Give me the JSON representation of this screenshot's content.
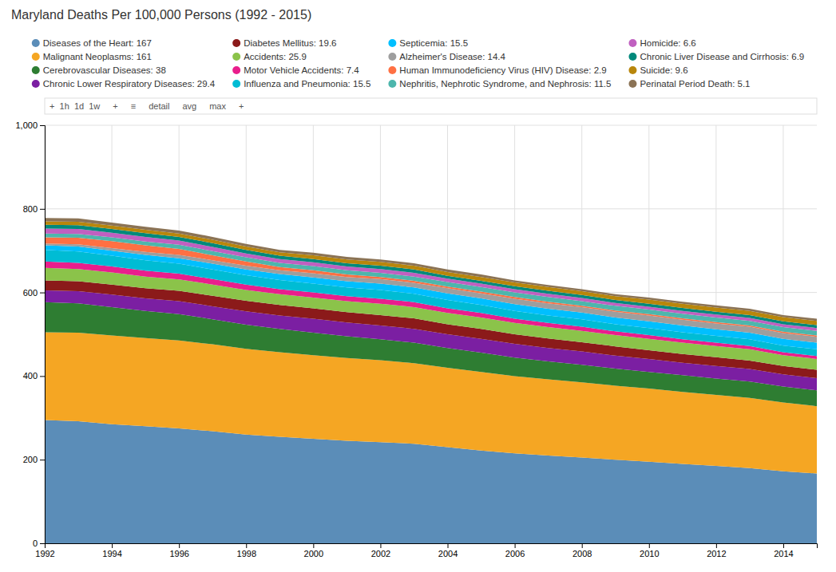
{
  "chart_data": {
    "type": "area",
    "stacked": true,
    "title": "Maryland Deaths Per 100,000 Persons (1992 - 2015)",
    "annotations": [
      "+  1h  1d  1w",
      "+",
      "≡",
      "detail",
      "avg",
      "max",
      "+"
    ],
    "x": [
      1992,
      1993,
      1994,
      1995,
      1996,
      1997,
      1998,
      1999,
      2000,
      2001,
      2002,
      2003,
      2004,
      2005,
      2006,
      2007,
      2008,
      2009,
      2010,
      2011,
      2012,
      2013,
      2014,
      2015
    ],
    "series": [
      {
        "name": "Diseases of the Heart: 167",
        "color": "#5b8db8",
        "values": [
          295,
          292,
          285,
          280,
          275,
          268,
          260,
          255,
          250,
          245,
          242,
          238,
          230,
          222,
          215,
          210,
          205,
          200,
          195,
          190,
          185,
          180,
          172,
          167
        ]
      },
      {
        "name": "Malignant Neoplasms: 161",
        "color": "#f5a623",
        "values": [
          210,
          212,
          212,
          211,
          210,
          208,
          205,
          202,
          200,
          198,
          196,
          193,
          190,
          188,
          185,
          182,
          180,
          177,
          175,
          172,
          170,
          168,
          165,
          161
        ]
      },
      {
        "name": "Cerebrovascular Diseases: 38",
        "color": "#2e7d32",
        "values": [
          72,
          70,
          68,
          65,
          63,
          60,
          58,
          56,
          54,
          52,
          50,
          49,
          47,
          46,
          44,
          43,
          42,
          41,
          40,
          40,
          39,
          39,
          38,
          38
        ]
      },
      {
        "name": "Chronic Lower Respiratory Diseases: 29.4",
        "color": "#7b1fa2",
        "values": [
          28,
          29,
          30,
          30,
          31,
          31,
          32,
          32,
          33,
          33,
          33,
          33,
          33,
          33,
          33,
          32,
          32,
          31,
          31,
          30,
          30,
          30,
          29,
          29
        ]
      },
      {
        "name": "Diabetes Mellitus: 19.6",
        "color": "#8b1a1a",
        "values": [
          24,
          24,
          24,
          24,
          25,
          25,
          25,
          25,
          25,
          25,
          25,
          25,
          24,
          24,
          23,
          23,
          22,
          22,
          21,
          21,
          21,
          20,
          20,
          20
        ]
      },
      {
        "name": "Accidents: 25.9",
        "color": "#8bc34a",
        "values": [
          30,
          29,
          29,
          28,
          27,
          27,
          26,
          26,
          26,
          26,
          27,
          27,
          27,
          27,
          27,
          27,
          27,
          27,
          27,
          27,
          27,
          27,
          26,
          26
        ]
      },
      {
        "name": "Motor Vehicle Accidents: 7.4",
        "color": "#e91e8c",
        "values": [
          15,
          15,
          14,
          14,
          14,
          13,
          13,
          12,
          12,
          12,
          12,
          12,
          11,
          11,
          10,
          10,
          10,
          9,
          9,
          8,
          8,
          8,
          7,
          7
        ]
      },
      {
        "name": "Influenza and Pneumonia: 15.5",
        "color": "#00bcd4",
        "values": [
          28,
          27,
          26,
          25,
          24,
          23,
          22,
          22,
          21,
          21,
          21,
          20,
          20,
          19,
          19,
          18,
          18,
          17,
          17,
          17,
          16,
          16,
          16,
          16
        ]
      },
      {
        "name": "Septicemia: 15.5",
        "color": "#00bfff",
        "values": [
          11,
          12,
          12,
          13,
          13,
          14,
          14,
          14,
          15,
          15,
          15,
          15,
          16,
          16,
          16,
          16,
          16,
          16,
          16,
          16,
          16,
          16,
          16,
          16
        ]
      },
      {
        "name": "Alzheimer's Disease: 14.4",
        "color": "#9e9e9e",
        "values": [
          4,
          5,
          6,
          7,
          8,
          8,
          9,
          9,
          10,
          10,
          11,
          11,
          12,
          12,
          13,
          13,
          13,
          14,
          14,
          14,
          14,
          14,
          14,
          14
        ]
      },
      {
        "name": "Human Immunodeficiency Virus (HIV) Disease: 2.9",
        "color": "#ff7043",
        "values": [
          15,
          16,
          17,
          16,
          14,
          12,
          10,
          8,
          7,
          6,
          5,
          5,
          4,
          4,
          4,
          4,
          3,
          3,
          3,
          3,
          3,
          3,
          3,
          3
        ]
      },
      {
        "name": "Nephritis, Nephrotic Syndrome, and Nephrosis: 11.5",
        "color": "#4db6ac",
        "values": [
          9,
          9,
          9,
          9,
          10,
          10,
          10,
          10,
          10,
          10,
          10,
          10,
          11,
          11,
          11,
          11,
          11,
          11,
          11,
          11,
          11,
          11,
          11,
          11
        ]
      },
      {
        "name": "Homicide: 6.6",
        "color": "#c060c0",
        "values": [
          12,
          12,
          11,
          11,
          10,
          10,
          9,
          9,
          9,
          9,
          9,
          9,
          8,
          8,
          8,
          8,
          8,
          7,
          7,
          7,
          7,
          7,
          7,
          7
        ]
      },
      {
        "name": "Chronic Liver Disease and Cirrhosis: 6.9",
        "color": "#00897b",
        "values": [
          9,
          9,
          9,
          9,
          9,
          9,
          9,
          8,
          8,
          8,
          8,
          8,
          7,
          7,
          7,
          7,
          7,
          7,
          7,
          7,
          7,
          7,
          7,
          7
        ]
      },
      {
        "name": "Suicide: 9.6",
        "color": "#b8860b",
        "values": [
          8,
          8,
          8,
          8,
          8,
          8,
          8,
          8,
          9,
          9,
          9,
          9,
          9,
          9,
          9,
          9,
          9,
          9,
          10,
          10,
          10,
          10,
          10,
          10
        ]
      },
      {
        "name": "Perinatal Period Death: 5.1",
        "color": "#8b7355",
        "values": [
          8,
          8,
          7,
          7,
          7,
          7,
          6,
          6,
          6,
          6,
          6,
          6,
          6,
          6,
          5,
          5,
          5,
          5,
          5,
          5,
          5,
          5,
          5,
          5
        ]
      }
    ],
    "xlim": [
      1992,
      2015
    ],
    "xticks": [
      1992,
      1994,
      1996,
      1998,
      2000,
      2002,
      2004,
      2006,
      2008,
      2010,
      2012,
      2014
    ],
    "ylim": [
      0,
      1000
    ],
    "yticks": [
      0,
      200,
      400,
      600,
      800,
      {
        "value": 1000,
        "label": "1,000"
      }
    ],
    "grid": true,
    "legend": "top"
  }
}
